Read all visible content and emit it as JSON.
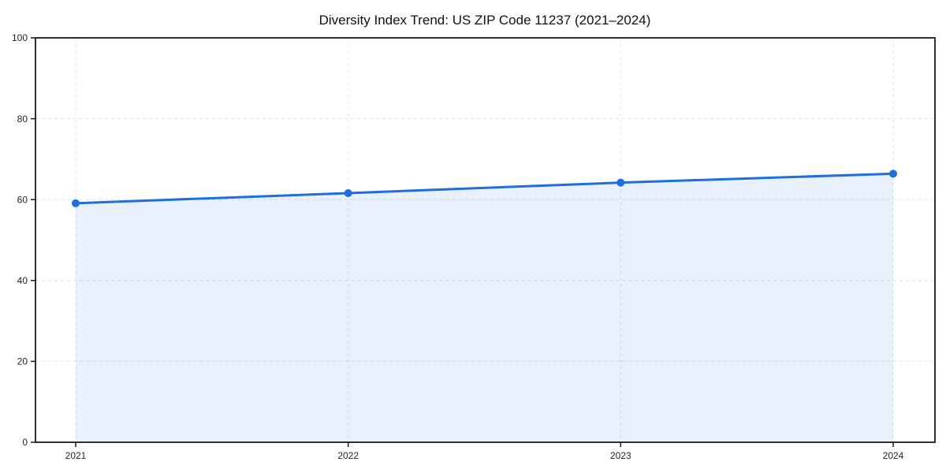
{
  "page": {
    "background": "#ffffff"
  },
  "chart_data": {
    "type": "line",
    "title": "Diversity Index Trend: US ZIP Code 11237 (2021–2024)",
    "categories": [
      "2021",
      "2022",
      "2023",
      "2024"
    ],
    "series": [
      {
        "name": "Diversity Index",
        "values": [
          59.1,
          61.6,
          64.2,
          66.4
        ]
      }
    ],
    "xlabel": "",
    "ylabel": "",
    "ylim": [
      0,
      100
    ],
    "y_ticks": [
      0,
      20,
      40,
      60,
      80,
      100
    ],
    "grid": true,
    "grid_style": "dashed",
    "legend_position": "none",
    "area_fill_under_line": true,
    "colors": {
      "line": "#1e6fdc",
      "marker": "#1e6fdc",
      "area_fill": "#1e6fdc",
      "area_opacity": 0.1,
      "gridline": "#e4e4e4",
      "spine": "#1a1a1a",
      "title_text": "#111111",
      "tick_text": "#262626"
    }
  }
}
